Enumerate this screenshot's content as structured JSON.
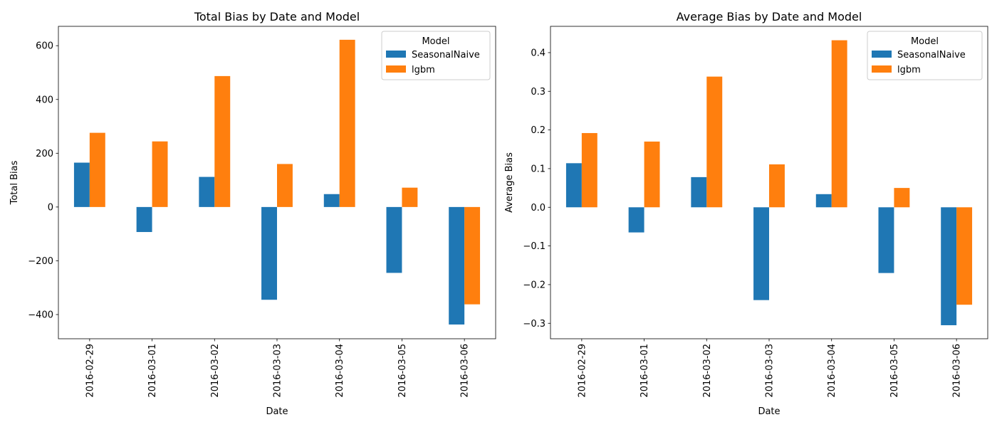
{
  "chart_data": [
    {
      "type": "bar",
      "title": "Total Bias by Date and Model",
      "xlabel": "Date",
      "ylabel": "Total Bias",
      "categories": [
        "2016-02-29",
        "2016-03-01",
        "2016-03-02",
        "2016-03-03",
        "2016-03-04",
        "2016-03-05",
        "2016-03-06"
      ],
      "series": [
        {
          "name": "SeasonalNaive",
          "color": "#1f77b4",
          "values": [
            165,
            -93,
            112,
            -345,
            48,
            -245,
            -437
          ]
        },
        {
          "name": "lgbm",
          "color": "#ff7f0e",
          "values": [
            276,
            244,
            487,
            160,
            622,
            72,
            -362
          ]
        }
      ],
      "ylim": [
        -490,
        672
      ],
      "yticks": [
        -400,
        -200,
        0,
        200,
        400,
        600
      ],
      "ytick_labels": [
        "−400",
        "−200",
        "0",
        "200",
        "400",
        "600"
      ],
      "legend": {
        "title": "Model",
        "placement": "top-right"
      },
      "grid": false
    },
    {
      "type": "bar",
      "title": "Average Bias by Date and Model",
      "xlabel": "Date",
      "ylabel": "Average Bias",
      "categories": [
        "2016-02-29",
        "2016-03-01",
        "2016-03-02",
        "2016-03-03",
        "2016-03-04",
        "2016-03-05",
        "2016-03-06"
      ],
      "series": [
        {
          "name": "SeasonalNaive",
          "color": "#1f77b4",
          "values": [
            0.114,
            -0.065,
            0.078,
            -0.24,
            0.034,
            -0.17,
            -0.305
          ]
        },
        {
          "name": "lgbm",
          "color": "#ff7f0e",
          "values": [
            0.192,
            0.17,
            0.338,
            0.111,
            0.432,
            0.05,
            -0.252
          ]
        }
      ],
      "ylim": [
        -0.34,
        0.468
      ],
      "yticks": [
        -0.3,
        -0.2,
        -0.1,
        0.0,
        0.1,
        0.2,
        0.3,
        0.4
      ],
      "ytick_labels": [
        "−0.3",
        "−0.2",
        "−0.1",
        "0.0",
        "0.1",
        "0.2",
        "0.3",
        "0.4"
      ],
      "legend": {
        "title": "Model",
        "placement": "top-right"
      },
      "grid": false
    }
  ]
}
